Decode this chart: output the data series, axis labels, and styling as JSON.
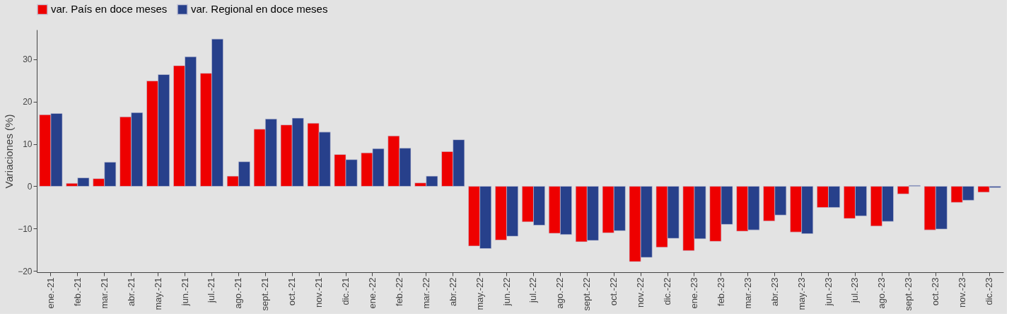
{
  "chart_data": {
    "type": "bar",
    "ylabel": "Variaciones (%)",
    "categories": [
      "ene.-21",
      "feb.-21",
      "mar.-21",
      "abr.-21",
      "may.-21",
      "jun.-21",
      "jul.-21",
      "ago.-21",
      "sept.-21",
      "oct.-21",
      "nov.-21",
      "dic.-21",
      "ene.-22",
      "feb.-22",
      "mar.-22",
      "abr.-22",
      "may.-22",
      "jun.-22",
      "jul.-22",
      "ago.-22",
      "sept.-22",
      "oct.-22",
      "nov.-22",
      "dic.-22",
      "ene.-23",
      "feb.-23",
      "mar.-23",
      "abr.-23",
      "may.-23",
      "jun.-23",
      "jul.-23",
      "ago.-23",
      "sept.-23",
      "oct.-23",
      "nov.-23",
      "dic.-23"
    ],
    "series": [
      {
        "name": "var. País en doce meses",
        "color": "#ee0000",
        "values": [
          16.9,
          0.7,
          1.8,
          16.4,
          24.9,
          28.5,
          26.7,
          2.4,
          13.5,
          14.5,
          14.9,
          7.5,
          7.9,
          11.9,
          0.8,
          8.2,
          -14.1,
          -12.7,
          -8.4,
          -11.1,
          -13.1,
          -11.0,
          -17.8,
          -14.4,
          -15.2,
          -13.0,
          -10.6,
          -8.2,
          -10.8,
          -5.0,
          -7.6,
          -9.4,
          -1.8,
          -10.3,
          -3.8,
          -1.4
        ]
      },
      {
        "name": "var. Regional en doce meses",
        "color": "#27408b",
        "values": [
          17.2,
          2.0,
          5.7,
          17.4,
          26.4,
          30.6,
          34.8,
          5.8,
          15.9,
          16.1,
          12.8,
          6.3,
          8.9,
          9.0,
          2.4,
          11.0,
          -14.7,
          -11.8,
          -9.2,
          -11.4,
          -12.8,
          -10.5,
          -16.8,
          -12.3,
          -12.4,
          -9.0,
          -10.3,
          -6.8,
          -11.2,
          -5.0,
          -7.0,
          -8.3,
          0.2,
          -10.1,
          -3.3,
          -0.3
        ]
      }
    ],
    "ylim": [
      -20.3,
      37
    ],
    "yticks": [
      -20,
      -10,
      0,
      10,
      20,
      30
    ],
    "grid": false,
    "legend": "top"
  }
}
